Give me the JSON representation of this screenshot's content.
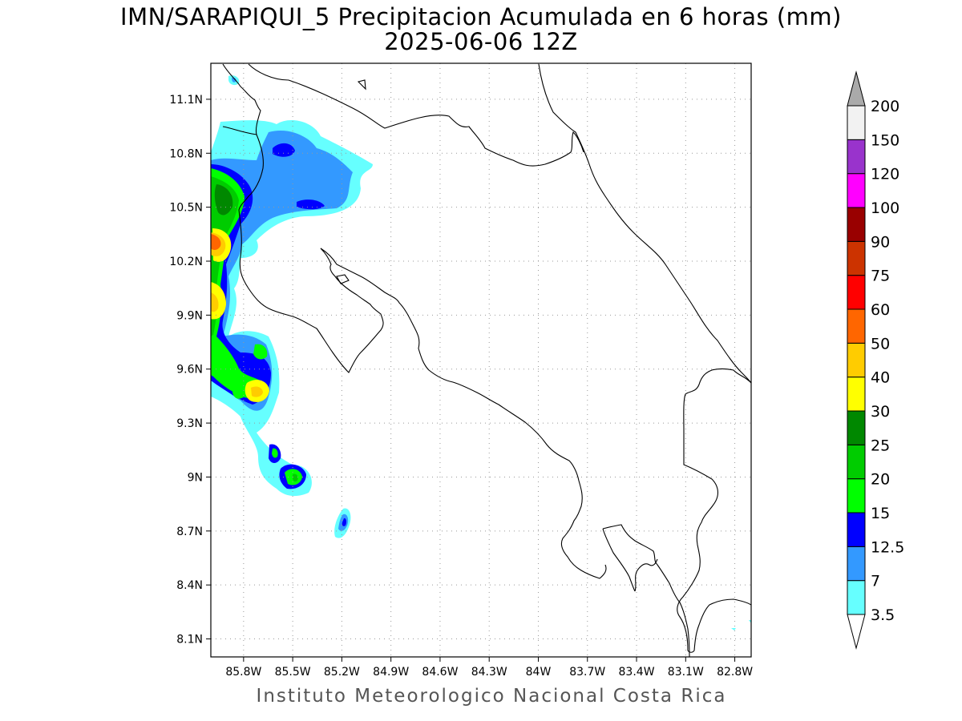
{
  "title_line1": "IMN/SARAPIQUI_5 Precipitacion Acumulada en 6 horas (mm)",
  "title_line2": "2025-06-06 12Z",
  "footer": "Instituto Meteorologico Nacional Costa Rica",
  "map": {
    "lon_range": [
      -86.0,
      -82.7
    ],
    "lat_range": [
      8.0,
      11.3
    ],
    "x_ticks": [
      {
        "lon": -85.8,
        "label": "85.8W"
      },
      {
        "lon": -85.5,
        "label": "85.5W"
      },
      {
        "lon": -85.2,
        "label": "85.2W"
      },
      {
        "lon": -84.9,
        "label": "84.9W"
      },
      {
        "lon": -84.6,
        "label": "84.6W"
      },
      {
        "lon": -84.3,
        "label": "84.3W"
      },
      {
        "lon": -84.0,
        "label": "84W"
      },
      {
        "lon": -83.7,
        "label": "83.7W"
      },
      {
        "lon": -83.4,
        "label": "83.4W"
      },
      {
        "lon": -83.1,
        "label": "83.1W"
      },
      {
        "lon": -82.8,
        "label": "82.8W"
      }
    ],
    "y_ticks": [
      {
        "lat": 11.1,
        "label": "11.1N"
      },
      {
        "lat": 10.8,
        "label": "10.8N"
      },
      {
        "lat": 10.5,
        "label": "10.5N"
      },
      {
        "lat": 10.2,
        "label": "10.2N"
      },
      {
        "lat": 9.9,
        "label": "9.9N"
      },
      {
        "lat": 9.6,
        "label": "9.6N"
      },
      {
        "lat": 9.3,
        "label": "9.3N"
      },
      {
        "lat": 9.0,
        "label": "9N"
      },
      {
        "lat": 8.7,
        "label": "8.7N"
      },
      {
        "lat": 8.4,
        "label": "8.4N"
      },
      {
        "lat": 8.1,
        "label": "8.1N"
      }
    ],
    "grid": true
  },
  "colorbar": {
    "labels": [
      "3.5",
      "7",
      "12.5",
      "15",
      "20",
      "25",
      "30",
      "40",
      "50",
      "60",
      "75",
      "90",
      "100",
      "120",
      "150",
      "200"
    ],
    "colors": [
      "#66ffff",
      "#3399ff",
      "#0000ff",
      "#00ff00",
      "#00cc00",
      "#008800",
      "#ffff00",
      "#ffcc00",
      "#ff6600",
      "#ff0000",
      "#cc3300",
      "#990000",
      "#ff00ff",
      "#9933cc",
      "#f2f2f2"
    ],
    "extend_max_color": "#aaaaaa",
    "extend_min_color": "#ffffff"
  },
  "precip_cells": [
    {
      "lon": -85.78,
      "lat": 10.58,
      "value": 25
    },
    {
      "lon": -85.93,
      "lat": 10.33,
      "value": 60
    },
    {
      "lon": -85.93,
      "lat": 9.95,
      "value": 40
    },
    {
      "lon": -85.62,
      "lat": 9.5,
      "value": 50
    },
    {
      "lon": -85.75,
      "lat": 9.55,
      "value": 20
    },
    {
      "lon": -85.63,
      "lat": 9.74,
      "value": 20
    },
    {
      "lon": -85.47,
      "lat": 9.0,
      "value": 20
    },
    {
      "lon": -85.56,
      "lat": 9.14,
      "value": 15
    },
    {
      "lon": -85.16,
      "lat": 8.74,
      "value": 12.5
    },
    {
      "lon": -85.48,
      "lat": 10.84,
      "value": 12.5
    },
    {
      "lon": -85.28,
      "lat": 10.53,
      "value": 12.5
    }
  ]
}
